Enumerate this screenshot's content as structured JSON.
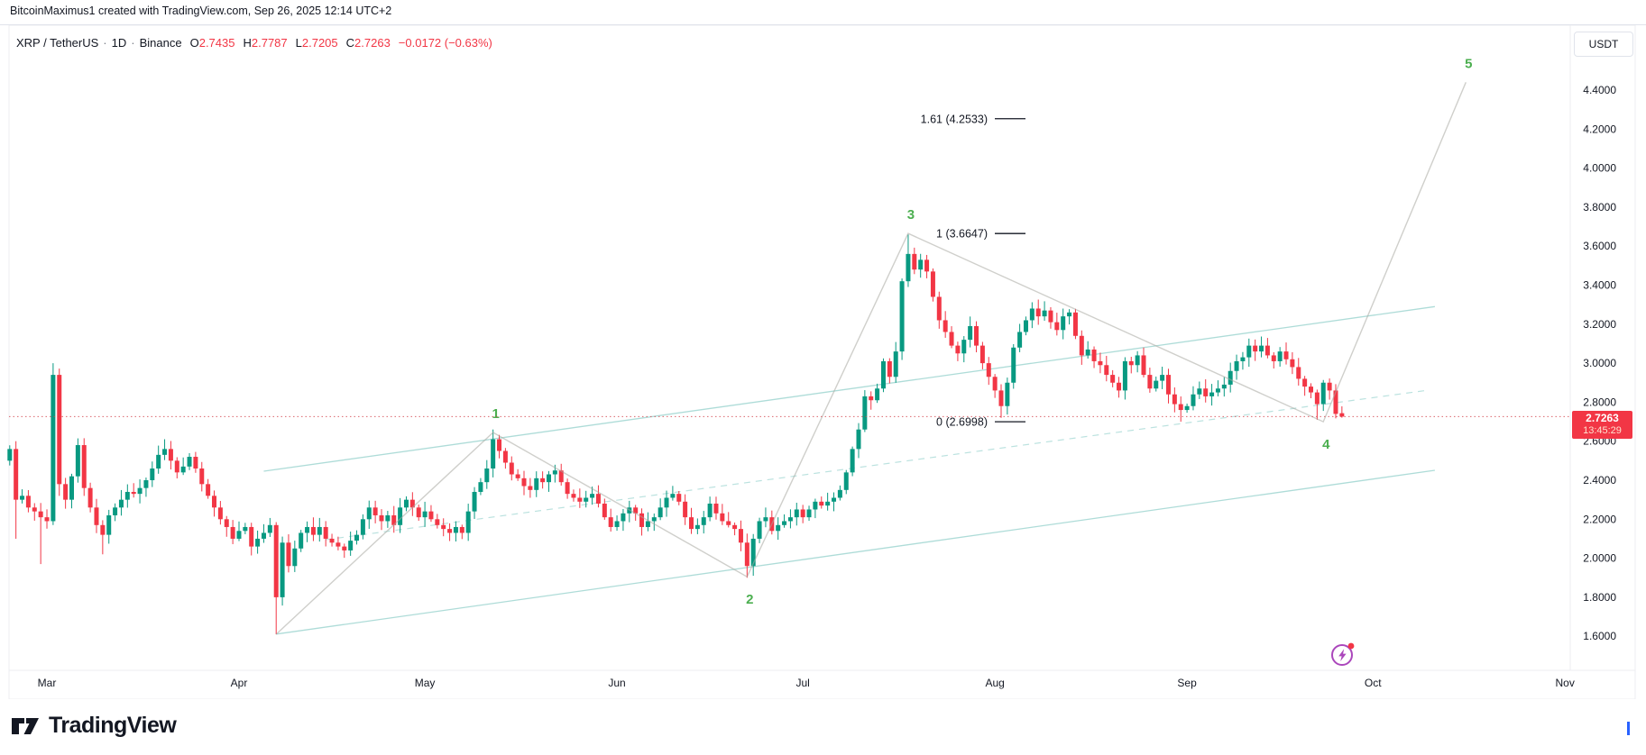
{
  "attribution": "BitcoinMaximus1 created with TradingView.com, Sep 26, 2025 12:14 UTC+2",
  "header": {
    "symbol": "XRP / TetherUS",
    "separator": "·",
    "interval": "1D",
    "exchange": "Binance",
    "ohlc": [
      {
        "label": "O",
        "value": "2.7435"
      },
      {
        "label": "H",
        "value": "2.7787"
      },
      {
        "label": "L",
        "value": "2.7205"
      },
      {
        "label": "C",
        "value": "2.7263"
      }
    ],
    "change": "−0.0172 (−0.63%)"
  },
  "price_scale": {
    "currency_button": "USDT",
    "tick_values": [
      4.4,
      4.2,
      4.0,
      3.8,
      3.6,
      3.4,
      3.2,
      3.0,
      2.8,
      2.6,
      2.4,
      2.2,
      2.0,
      1.8,
      1.6
    ],
    "last_price": "2.7263",
    "countdown": "13:45:29"
  },
  "time_scale": {
    "months": [
      "Mar",
      "Apr",
      "May",
      "Jun",
      "Jul",
      "Aug",
      "Sep",
      "Oct",
      "Nov"
    ],
    "month_day_offsets": [
      6,
      37,
      67,
      98,
      128,
      159,
      190,
      220,
      251
    ]
  },
  "footer": {
    "logo_text": "TradingView"
  },
  "colors": {
    "up": "#089981",
    "down": "#f23645",
    "badge": "#f23645",
    "wave_label": "#4caf50",
    "wave_line": "rgba(168,168,160,0.55)",
    "channel_line": "rgba(94,186,178,0.5)",
    "dashed_line": "rgba(94,186,178,0.42)",
    "price_line": "rgba(210,62,72,0.8)",
    "axis_text": "#131722",
    "frame": "#eceef2",
    "spark_purple": "#ab47bc",
    "spark_dot": "#f23645",
    "caret_blue": "#2962ff"
  },
  "chart_data": {
    "type": "candlestick",
    "symbol": "XRP/USDT",
    "timeframe": "1D",
    "start_date": "2025-02-23",
    "end_date": "2025-09-26",
    "ylim": [
      1.55,
      4.55
    ],
    "y_tick_step": 0.2,
    "grid": false,
    "first_open": 2.5,
    "closes": [
      2.56,
      2.3,
      2.32,
      2.26,
      2.24,
      2.21,
      2.19,
      2.94,
      2.38,
      2.3,
      2.42,
      2.58,
      2.36,
      2.26,
      2.17,
      2.12,
      2.22,
      2.26,
      2.3,
      2.34,
      2.33,
      2.36,
      2.4,
      2.46,
      2.53,
      2.56,
      2.5,
      2.44,
      2.47,
      2.52,
      2.46,
      2.38,
      2.32,
      2.26,
      2.2,
      2.16,
      2.1,
      2.14,
      2.16,
      2.06,
      2.1,
      2.13,
      2.17,
      1.8,
      2.08,
      1.96,
      2.05,
      2.13,
      2.16,
      2.12,
      2.16,
      2.1,
      2.08,
      2.06,
      2.04,
      2.09,
      2.12,
      2.2,
      2.26,
      2.22,
      2.19,
      2.22,
      2.17,
      2.26,
      2.3,
      2.26,
      2.21,
      2.24,
      2.2,
      2.17,
      2.15,
      2.13,
      2.16,
      2.13,
      2.24,
      2.34,
      2.39,
      2.46,
      2.61,
      2.55,
      2.49,
      2.43,
      2.41,
      2.37,
      2.35,
      2.41,
      2.39,
      2.43,
      2.45,
      2.39,
      2.33,
      2.31,
      2.29,
      2.31,
      2.33,
      2.28,
      2.21,
      2.16,
      2.19,
      2.23,
      2.26,
      2.23,
      2.16,
      2.19,
      2.21,
      2.26,
      2.31,
      2.33,
      2.29,
      2.21,
      2.15,
      2.17,
      2.21,
      2.28,
      2.23,
      2.19,
      2.17,
      2.15,
      2.08,
      1.96,
      2.1,
      2.19,
      2.21,
      2.14,
      2.17,
      2.19,
      2.21,
      2.25,
      2.21,
      2.25,
      2.29,
      2.27,
      2.29,
      2.31,
      2.35,
      2.44,
      2.56,
      2.66,
      2.83,
      2.81,
      2.87,
      3.01,
      2.93,
      3.06,
      3.42,
      3.56,
      3.48,
      3.53,
      3.47,
      3.34,
      3.22,
      3.16,
      3.09,
      3.05,
      3.12,
      3.19,
      3.09,
      3.0,
      2.93,
      2.86,
      2.78,
      2.9,
      3.08,
      3.16,
      3.22,
      3.28,
      3.24,
      3.27,
      3.21,
      3.17,
      3.24,
      3.26,
      3.14,
      3.04,
      3.07,
      3.01,
      2.99,
      2.94,
      2.9,
      2.86,
      3.01,
      2.99,
      3.04,
      2.94,
      2.87,
      2.91,
      2.94,
      2.84,
      2.79,
      2.76,
      2.78,
      2.84,
      2.87,
      2.83,
      2.85,
      2.87,
      2.89,
      2.96,
      3.01,
      3.03,
      3.09,
      3.06,
      3.09,
      3.04,
      3.01,
      3.06,
      3.02,
      2.98,
      2.92,
      2.88,
      2.85,
      2.79,
      2.9,
      2.86,
      2.74,
      2.7263
    ],
    "overrides": {
      "1": {
        "l": 2.1
      },
      "5": {
        "l": 1.97
      },
      "7": {
        "h": 3.0,
        "l": 2.17
      },
      "8": {
        "l": 2.32
      },
      "15": {
        "l": 2.02
      },
      "25": {
        "h": 2.61
      },
      "43": {
        "l": 1.61
      },
      "78": {
        "h": 2.66
      },
      "119": {
        "l": 1.9
      },
      "145": {
        "h": 3.66
      },
      "160": {
        "l": 2.72
      },
      "189": {
        "l": 2.7
      },
      "211": {
        "l": 2.71
      },
      "215": {
        "o": 2.7435,
        "h": 2.7787,
        "l": 2.7205
      }
    },
    "elliott_wave": {
      "points": [
        [
          43,
          1.61
        ],
        [
          78,
          2.645
        ],
        [
          119,
          1.905
        ],
        [
          145,
          3.665
        ],
        [
          212,
          2.7
        ],
        [
          235,
          4.44
        ]
      ],
      "labels": [
        {
          "text": "1",
          "d": 78,
          "p": 2.645,
          "side": "above"
        },
        {
          "text": "2",
          "d": 119,
          "p": 1.905,
          "side": "below"
        },
        {
          "text": "3",
          "d": 145,
          "p": 3.665,
          "side": "above"
        },
        {
          "text": "4",
          "d": 212,
          "p": 2.7,
          "side": "below"
        },
        {
          "text": "5",
          "d": 235,
          "p": 4.44,
          "side": "above"
        }
      ]
    },
    "fib_levels": [
      {
        "text": "1.61 (4.2533)",
        "price": 4.2533
      },
      {
        "text": "1 (3.6647)",
        "price": 3.6647
      },
      {
        "text": "0 (2.6998)",
        "price": 2.6998
      }
    ],
    "channel": {
      "lower": [
        [
          43,
          1.611
        ],
        [
          230,
          2.451
        ]
      ],
      "upper": [
        [
          41,
          2.446
        ],
        [
          230,
          3.29
        ]
      ],
      "dashed": [
        [
          51,
          2.095
        ],
        [
          229,
          2.862
        ]
      ]
    },
    "price_line_value": 2.7263
  }
}
